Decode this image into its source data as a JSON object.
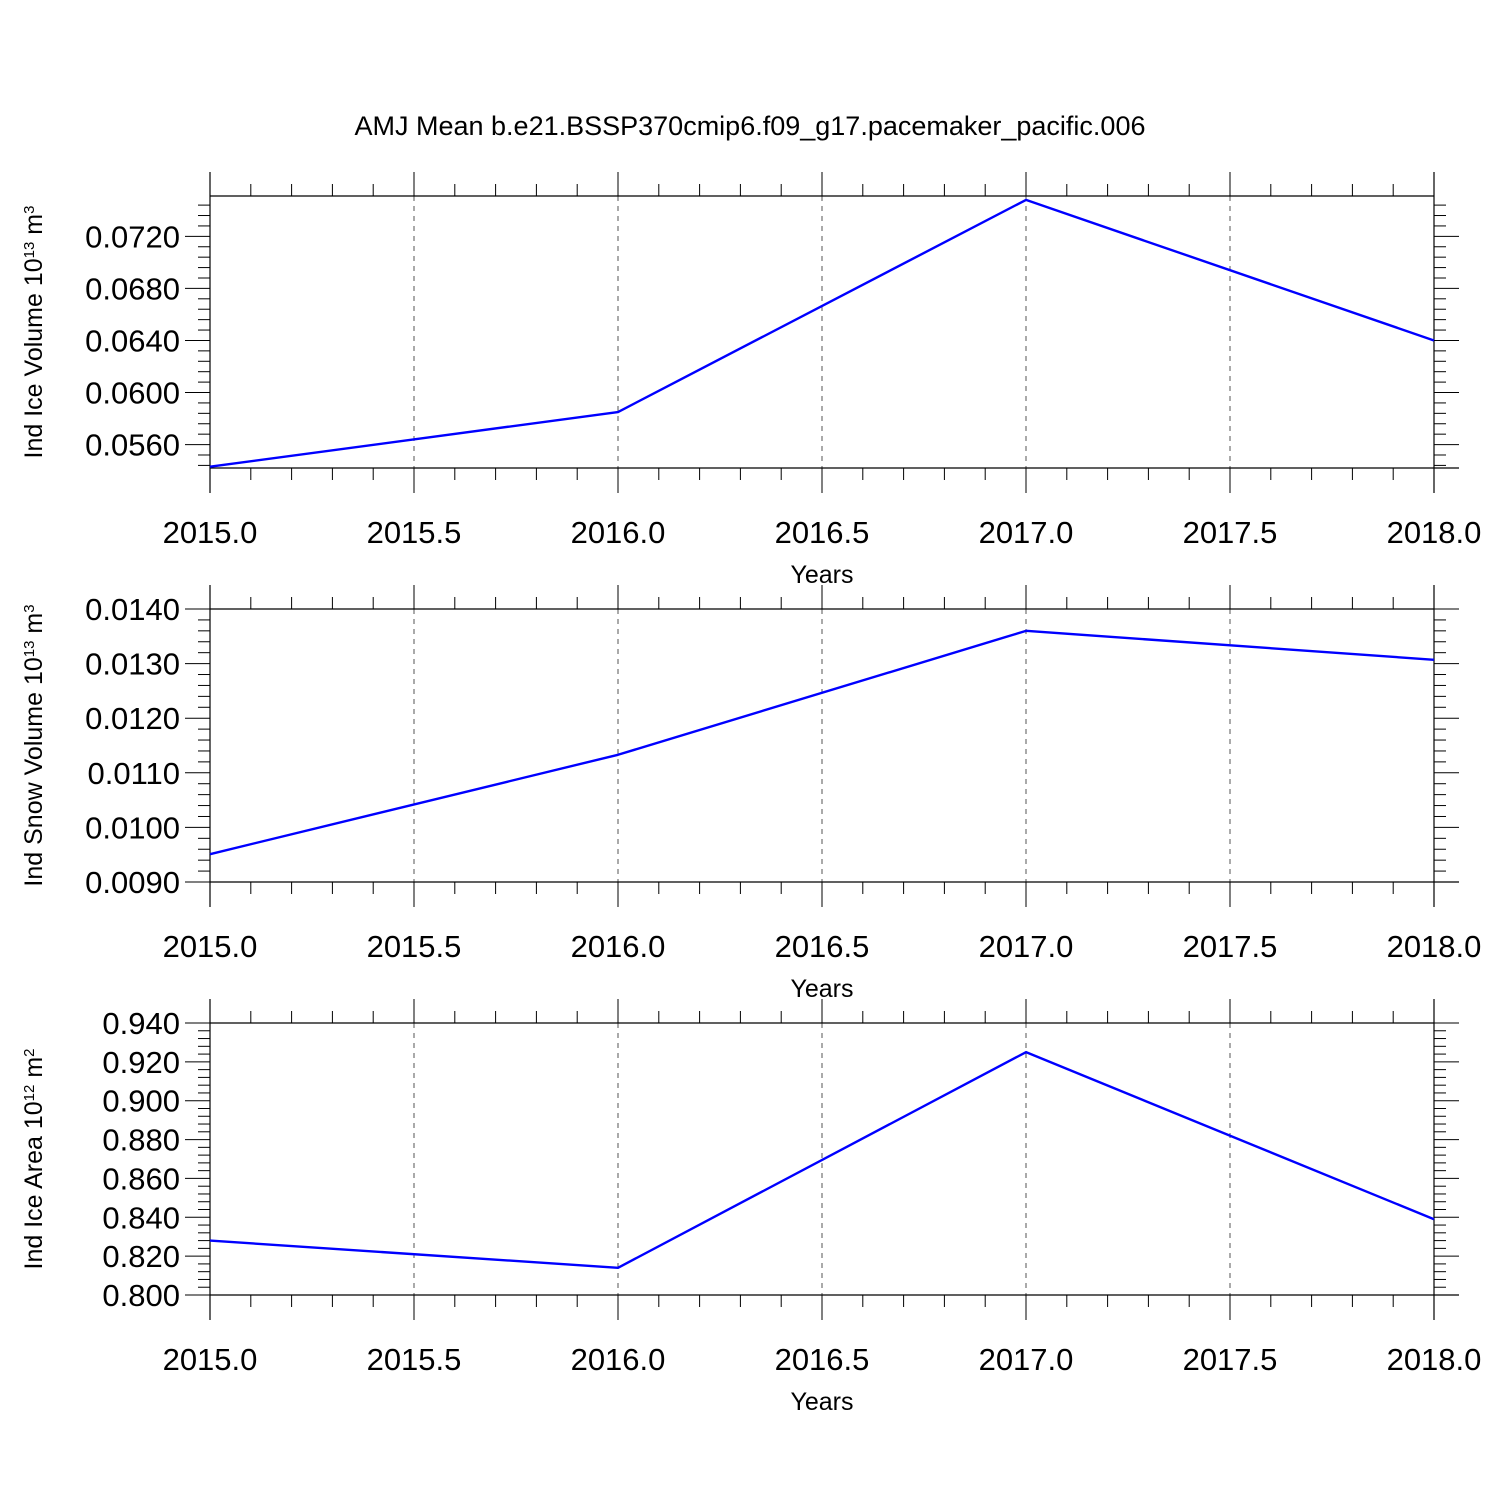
{
  "title": "AMJ Mean b.e21.BSSP370cmip6.f09_g17.pacemaker_pacific.006",
  "line_color": "#0000ff",
  "chart_data": [
    {
      "type": "line",
      "xlabel": "Years",
      "ylabel": {
        "text": "Ind Ice Volume 10",
        "exponent": "13",
        "unit": " m",
        "unit_exponent": "3"
      },
      "xlim": [
        2015.0,
        2018.0
      ],
      "ylim": [
        0.0542,
        0.0751
      ],
      "xticks": [
        "2015.0",
        "2015.5",
        "2016.0",
        "2016.5",
        "2017.0",
        "2017.5",
        "2018.0"
      ],
      "yticks": [
        "0.0560",
        "0.0600",
        "0.0640",
        "0.0680",
        "0.0720"
      ],
      "grid": "vertical dashed",
      "series": [
        {
          "x": [
            2015,
            2016,
            2017,
            2018
          ],
          "values": [
            0.0543,
            0.0585,
            0.0748,
            0.064
          ]
        }
      ]
    },
    {
      "type": "line",
      "xlabel": "Years",
      "ylabel": {
        "text": "Ind Snow Volume 10",
        "exponent": "13",
        "unit": " m",
        "unit_exponent": "3"
      },
      "xlim": [
        2015.0,
        2018.0
      ],
      "ylim": [
        0.009,
        0.014
      ],
      "xticks": [
        "2015.0",
        "2015.5",
        "2016.0",
        "2016.5",
        "2017.0",
        "2017.5",
        "2018.0"
      ],
      "yticks": [
        "0.0090",
        "0.0100",
        "0.0110",
        "0.0120",
        "0.0130",
        "0.0140"
      ],
      "grid": "vertical dashed",
      "series": [
        {
          "x": [
            2015,
            2016,
            2017,
            2018
          ],
          "values": [
            0.00951,
            0.01133,
            0.0136,
            0.01307
          ]
        }
      ]
    },
    {
      "type": "line",
      "xlabel": "Years",
      "ylabel": {
        "text": "Ind Ice Area 10",
        "exponent": "12",
        "unit": " m",
        "unit_exponent": "2"
      },
      "xlim": [
        2015.0,
        2018.0
      ],
      "ylim": [
        0.8,
        0.94
      ],
      "xticks": [
        "2015.0",
        "2015.5",
        "2016.0",
        "2016.5",
        "2017.0",
        "2017.5",
        "2018.0"
      ],
      "yticks": [
        "0.800",
        "0.820",
        "0.840",
        "0.860",
        "0.880",
        "0.900",
        "0.920",
        "0.940"
      ],
      "grid": "vertical dashed",
      "series": [
        {
          "x": [
            2015,
            2016,
            2017,
            2018
          ],
          "values": [
            0.828,
            0.814,
            0.925,
            0.839
          ]
        }
      ]
    }
  ]
}
